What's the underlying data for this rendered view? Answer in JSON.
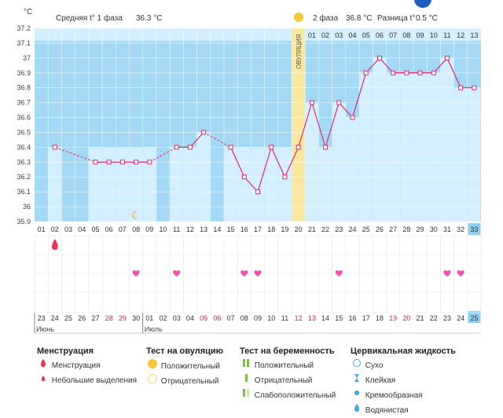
{
  "header": {
    "unit": "°C",
    "phase1_label": "Средняя t° 1 фаза",
    "phase1_value": "36.3 °C",
    "phase2_label": "2 фаза",
    "phase2_value": "36.8 °C",
    "diff_label": "Разница t°",
    "diff_value": "0.5 °C",
    "ovulation_label": "ОВУЛЯЦИЯ"
  },
  "chart_data": {
    "type": "line",
    "ylim": [
      35.9,
      37.2
    ],
    "y_ticks": [
      "37.2",
      "37.1",
      "37",
      "36.9",
      "36.8",
      "36.7",
      "36.6",
      "36.5",
      "36.4",
      "36.3",
      "36.2",
      "36.1",
      "36",
      "35.9"
    ],
    "cycle_days": [
      "01",
      "02",
      "03",
      "04",
      "05",
      "06",
      "07",
      "08",
      "09",
      "10",
      "11",
      "12",
      "13",
      "14",
      "15",
      "16",
      "17",
      "18",
      "19",
      "20",
      "21",
      "22",
      "23",
      "24",
      "25",
      "26",
      "27",
      "28",
      "29",
      "30",
      "31",
      "32",
      "33"
    ],
    "phase2_days": [
      "01",
      "02",
      "03",
      "04",
      "05",
      "06",
      "07",
      "08",
      "09",
      "10",
      "11",
      "12",
      "13"
    ],
    "ovulation_day_index": 19,
    "series": [
      {
        "values": [
          null,
          36.4,
          null,
          null,
          36.3,
          36.3,
          36.3,
          36.3,
          36.3,
          null,
          36.4,
          36.4,
          36.5,
          null,
          36.4,
          36.2,
          36.1,
          36.4,
          36.2,
          36.4,
          36.7,
          36.4,
          36.7,
          36.6,
          36.9,
          37.0,
          36.9,
          36.9,
          36.9,
          36.9,
          37.0,
          36.8,
          36.8
        ]
      }
    ],
    "dashed_segments": [
      [
        1,
        4
      ],
      [
        8,
        10
      ],
      [
        12,
        14
      ]
    ],
    "threshold": 36.4,
    "heart_day_indices": [
      7,
      10,
      15,
      16,
      22,
      30,
      31
    ],
    "moon_day_index": 7,
    "menstruation_day_index": 1,
    "dates": [
      "23",
      "24",
      "25",
      "26",
      "27",
      "28",
      "29",
      "30",
      "01",
      "02",
      "03",
      "04",
      "05",
      "06",
      "07",
      "08",
      "09",
      "10",
      "11",
      "12",
      "13",
      "14",
      "15",
      "16",
      "17",
      "18",
      "19",
      "20",
      "21",
      "22",
      "23",
      "24",
      "25"
    ],
    "weekend_indices": [
      5,
      6,
      12,
      13,
      19,
      20,
      26,
      27
    ],
    "month_labels": [
      {
        "label": "Июнь",
        "start_index": 0
      },
      {
        "label": "Июль",
        "start_index": 8
      }
    ],
    "highlight_last": true
  },
  "legend": {
    "groups": [
      {
        "title": "Менструация",
        "items": [
          {
            "label": "Менструация",
            "icon": "drop-red-large"
          },
          {
            "label": "Небольшие выделения",
            "icon": "drop-red-small"
          }
        ]
      },
      {
        "title": "Тест на овуляцию",
        "items": [
          {
            "label": "Положительный",
            "icon": "circle-yellow-filled"
          },
          {
            "label": "Отрицательный",
            "icon": "circle-yellow-outline"
          }
        ]
      },
      {
        "title": "Тест на беременность",
        "items": [
          {
            "label": "Положительный",
            "icon": "double-bar-green"
          },
          {
            "label": "Отрицательный",
            "icon": "single-bar-green"
          },
          {
            "label": "Слабоположительный",
            "icon": "double-bar-light"
          }
        ]
      },
      {
        "title": "Цервикальная жидкость",
        "items": [
          {
            "label": "Сухо",
            "icon": "circle-blue-outline"
          },
          {
            "label": "Клейкая",
            "icon": "hourglass-blue"
          },
          {
            "label": "Кремообразная",
            "icon": "blob-blue"
          },
          {
            "label": "Водянистая",
            "icon": "drop-blue"
          }
        ]
      }
    ]
  },
  "colors": {
    "sky": "#a3d9f5",
    "bar": "#d4efff",
    "line": "#e0286e",
    "ovulation": "#fbe8a0",
    "heart": "#f050b0",
    "drop": "#e8344e",
    "weekend": "#e0283c",
    "highlight": "#8fd0ee"
  }
}
